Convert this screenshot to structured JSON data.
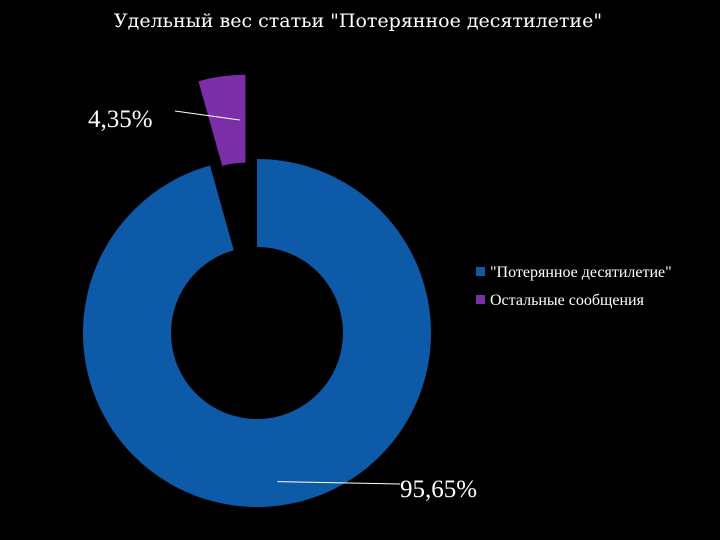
{
  "chart_data": {
    "type": "pie",
    "variant": "donut",
    "title": "Удельный вес статьи \"Потерянное десятилетие\"",
    "slices": [
      {
        "name": "\"Потерянное десятилетие\"",
        "value": 95.65,
        "label": "95,65%",
        "color": "#0d5aa8"
      },
      {
        "name": "Остальные сообщения",
        "value": 4.35,
        "label": "4,35%",
        "color": "#7a2fa6",
        "exploded": true
      }
    ],
    "legend_position": "right"
  }
}
